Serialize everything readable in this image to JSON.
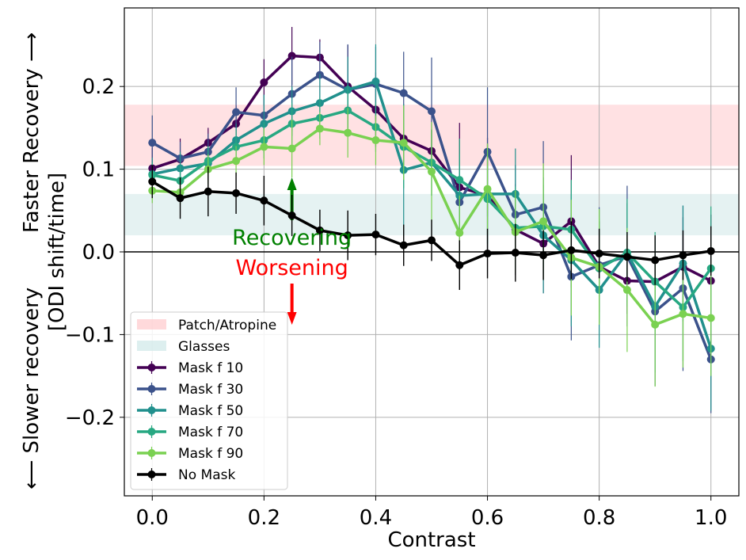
{
  "chart_data": {
    "type": "line",
    "xlabel": "Contrast",
    "ylabel_lines": [
      "⟵  Slower recovery",
      "Faster Recovery  ⟶",
      "[ODI shift/time]"
    ],
    "xlim": [
      -0.05,
      1.05
    ],
    "ylim": [
      -0.295,
      0.295
    ],
    "xticks": [
      0.0,
      0.2,
      0.4,
      0.6,
      0.8,
      1.0
    ],
    "xtick_labels": [
      "0.0",
      "0.2",
      "0.4",
      "0.6",
      "0.8",
      "1.0"
    ],
    "yticks": [
      -0.2,
      -0.1,
      0.0,
      0.1,
      0.2
    ],
    "ytick_labels": [
      "−0.2",
      "−0.1",
      "0.0",
      "0.1",
      "0.2"
    ],
    "grid": true,
    "legend_position": "lower-left",
    "x": [
      0.0,
      0.05,
      0.1,
      0.15,
      0.2,
      0.25,
      0.3,
      0.35,
      0.4,
      0.45,
      0.5,
      0.55,
      0.6,
      0.65,
      0.7,
      0.75,
      0.8,
      0.85,
      0.9,
      0.95,
      1.0
    ],
    "bands": [
      {
        "name": "Patch/Atropine",
        "y0": 0.104,
        "y1": 0.178,
        "color": "#ffc9cc"
      },
      {
        "name": "Glasses",
        "y0": 0.02,
        "y1": 0.07,
        "color": "#cfe8e8"
      }
    ],
    "series": [
      {
        "name": "Mask f 10",
        "color": "#440154",
        "values": [
          0.101,
          0.112,
          0.132,
          0.155,
          0.205,
          0.237,
          0.235,
          0.2,
          0.172,
          0.137,
          0.122,
          0.078,
          0.068,
          0.027,
          0.01,
          0.037,
          -0.018,
          -0.035,
          -0.036,
          -0.018,
          -0.035
        ],
        "err": [
          0.025,
          0.025,
          0.018,
          0.022,
          0.028,
          0.035,
          0.022,
          0.05,
          0.045,
          0.04,
          0.025,
          0.078,
          0.07,
          0.055,
          0.06,
          0.08,
          0.055,
          0.04,
          0.045,
          0.06,
          0.08
        ]
      },
      {
        "name": "Mask f 30",
        "color": "#3b528b",
        "values": [
          0.132,
          0.113,
          0.121,
          0.169,
          0.165,
          0.191,
          0.214,
          0.196,
          0.203,
          0.192,
          0.17,
          0.06,
          0.121,
          0.045,
          0.054,
          -0.03,
          -0.016,
          -0.005,
          -0.072,
          -0.044,
          -0.13
        ],
        "err": [
          0.033,
          0.02,
          0.022,
          0.03,
          0.025,
          0.045,
          0.04,
          0.055,
          0.045,
          0.05,
          0.065,
          0.04,
          0.078,
          0.06,
          0.08,
          0.077,
          0.07,
          0.085,
          0.09,
          0.1,
          0.065
        ]
      },
      {
        "name": "Mask f 50",
        "color": "#21908d",
        "values": [
          0.094,
          0.101,
          0.107,
          0.135,
          0.155,
          0.17,
          0.18,
          0.196,
          0.206,
          0.099,
          0.108,
          0.068,
          0.07,
          0.07,
          0.02,
          -0.01,
          -0.046,
          -0.001,
          -0.066,
          -0.014,
          -0.117
        ],
        "err": [
          0.02,
          0.02,
          0.02,
          0.02,
          0.035,
          0.03,
          0.035,
          0.04,
          0.045,
          0.08,
          0.04,
          0.05,
          0.06,
          0.055,
          0.07,
          0.08,
          0.07,
          0.06,
          0.08,
          0.07,
          0.075
        ]
      },
      {
        "name": "Mask f 70",
        "color": "#27a882",
        "values": [
          0.093,
          0.086,
          0.11,
          0.127,
          0.135,
          0.155,
          0.162,
          0.171,
          0.151,
          0.127,
          0.108,
          0.087,
          0.064,
          0.029,
          0.031,
          0.027,
          -0.02,
          -0.001,
          -0.036,
          -0.067,
          -0.02
        ],
        "err": [
          0.015,
          0.018,
          0.018,
          0.02,
          0.022,
          0.025,
          0.025,
          0.03,
          0.03,
          0.05,
          0.04,
          0.05,
          0.06,
          0.05,
          0.05,
          0.06,
          0.06,
          0.065,
          0.06,
          0.065,
          0.075
        ]
      },
      {
        "name": "Mask f 90",
        "color": "#7ad151",
        "values": [
          0.074,
          0.072,
          0.1,
          0.11,
          0.127,
          0.125,
          0.149,
          0.144,
          0.135,
          0.132,
          0.097,
          0.023,
          0.076,
          0.024,
          0.037,
          -0.007,
          -0.018,
          -0.046,
          -0.088,
          -0.075,
          -0.08
        ],
        "err": [
          0.015,
          0.015,
          0.018,
          0.018,
          0.022,
          0.035,
          0.02,
          0.03,
          0.03,
          0.045,
          0.06,
          0.045,
          0.055,
          0.05,
          0.07,
          0.07,
          0.07,
          0.075,
          0.075,
          0.065,
          0.07
        ]
      },
      {
        "name": "No Mask",
        "color": "#000000",
        "values": [
          0.085,
          0.065,
          0.073,
          0.071,
          0.062,
          0.044,
          0.026,
          0.02,
          0.021,
          0.008,
          0.014,
          -0.016,
          -0.002,
          -0.001,
          -0.004,
          0.002,
          -0.002,
          -0.006,
          -0.01,
          -0.004,
          0.001
        ],
        "err": [
          0.02,
          0.025,
          0.03,
          0.025,
          0.03,
          0.025,
          0.025,
          0.03,
          0.025,
          0.025,
          0.025,
          0.03,
          0.03,
          0.035,
          0.03,
          0.035,
          0.03,
          0.03,
          0.03,
          0.03,
          0.03
        ]
      }
    ],
    "annotations": [
      {
        "text": "Recovering",
        "color": "#008000",
        "x": 0.25,
        "y": 0.01,
        "arrow": "up"
      },
      {
        "text": "Worsening",
        "color": "#ff0000",
        "x": 0.25,
        "y": -0.025,
        "arrow": "down"
      }
    ]
  }
}
